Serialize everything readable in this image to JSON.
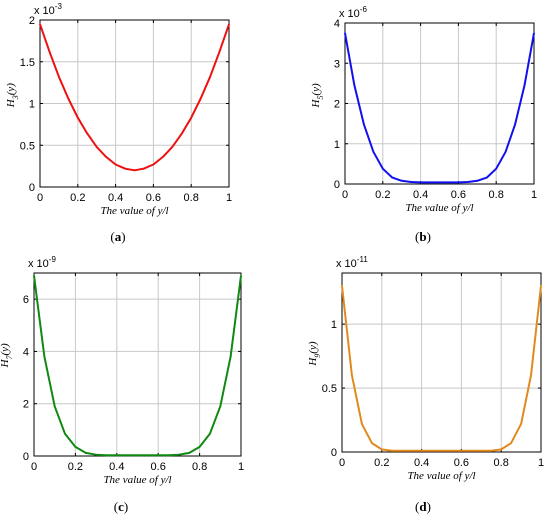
{
  "chart_data": [
    {
      "type": "line",
      "caption": "(a)",
      "exponent_label": "x 10",
      "exponent_power": "-3",
      "ylabel_main": "H",
      "ylabel_sub": "3",
      "ylabel_tail": "(y)",
      "xlabel": "The value of y/l",
      "xlim": [
        0,
        1
      ],
      "ylim": [
        0,
        2
      ],
      "xticks": [
        "0",
        "0.2",
        "0.4",
        "0.6",
        "0.8",
        "1"
      ],
      "yticks": [
        {
          "value": 0,
          "label": "0"
        },
        {
          "value": 0.5,
          "label": "0.5"
        },
        {
          "value": 1,
          "label": "1"
        },
        {
          "value": 1.5,
          "label": "1.5"
        },
        {
          "value": 2,
          "label": "2"
        }
      ],
      "color": "#ee1111",
      "grid": true,
      "x": [
        0,
        0.05,
        0.1,
        0.15,
        0.2,
        0.25,
        0.3,
        0.35,
        0.4,
        0.45,
        0.5,
        0.55,
        0.6,
        0.65,
        0.7,
        0.75,
        0.8,
        0.85,
        0.9,
        0.95,
        1
      ],
      "y": [
        1.95,
        1.62,
        1.32,
        1.06,
        0.83,
        0.64,
        0.48,
        0.36,
        0.27,
        0.22,
        0.2,
        0.22,
        0.27,
        0.36,
        0.48,
        0.64,
        0.83,
        1.06,
        1.32,
        1.62,
        1.95
      ]
    },
    {
      "type": "line",
      "caption": "(b)",
      "exponent_label": "x 10",
      "exponent_power": "-6",
      "ylabel_main": "H",
      "ylabel_sub": "5",
      "ylabel_tail": "(y)",
      "xlabel": "The value of y/l",
      "xlim": [
        0,
        1
      ],
      "ylim": [
        0,
        4
      ],
      "xticks": [
        "0",
        "0.2",
        "0.4",
        "0.6",
        "0.8",
        "1"
      ],
      "yticks": [
        {
          "value": 0,
          "label": "0"
        },
        {
          "value": 1,
          "label": "1"
        },
        {
          "value": 2,
          "label": "2"
        },
        {
          "value": 3,
          "label": "3"
        },
        {
          "value": 4,
          "label": "4"
        }
      ],
      "color": "#1111ee",
      "grid": true,
      "x": [
        0,
        0.05,
        0.1,
        0.15,
        0.2,
        0.25,
        0.3,
        0.35,
        0.4,
        0.45,
        0.5,
        0.55,
        0.6,
        0.65,
        0.7,
        0.75,
        0.8,
        0.85,
        0.9,
        0.95,
        1
      ],
      "y": [
        3.75,
        2.45,
        1.48,
        0.8,
        0.38,
        0.16,
        0.08,
        0.05,
        0.04,
        0.04,
        0.04,
        0.04,
        0.04,
        0.05,
        0.08,
        0.16,
        0.38,
        0.8,
        1.48,
        2.45,
        3.75
      ]
    },
    {
      "type": "line",
      "caption": "(c)",
      "exponent_label": "x 10",
      "exponent_power": "-9",
      "ylabel_main": "H",
      "ylabel_sub": "7",
      "ylabel_tail": "(y)",
      "xlabel": "The value of y/l",
      "xlim": [
        0,
        1
      ],
      "ylim": [
        0,
        7
      ],
      "xticks": [
        "0",
        "0.2",
        "0.4",
        "0.6",
        "0.8",
        "1"
      ],
      "yticks": [
        {
          "value": 0,
          "label": "0"
        },
        {
          "value": 2,
          "label": "2"
        },
        {
          "value": 4,
          "label": "4"
        },
        {
          "value": 6,
          "label": "6"
        }
      ],
      "color": "#118811",
      "grid": true,
      "x": [
        0,
        0.05,
        0.1,
        0.15,
        0.2,
        0.25,
        0.3,
        0.35,
        0.4,
        0.45,
        0.5,
        0.55,
        0.6,
        0.65,
        0.7,
        0.75,
        0.8,
        0.85,
        0.9,
        0.95,
        1
      ],
      "y": [
        6.9,
        3.8,
        1.9,
        0.85,
        0.35,
        0.12,
        0.05,
        0.03,
        0.03,
        0.03,
        0.03,
        0.03,
        0.03,
        0.03,
        0.05,
        0.12,
        0.35,
        0.85,
        1.9,
        3.8,
        6.9
      ]
    },
    {
      "type": "line",
      "caption": "(d)",
      "exponent_label": "x 10",
      "exponent_power": "-11",
      "ylabel_main": "H",
      "ylabel_sub": "9",
      "ylabel_tail": "(y)",
      "xlabel": "The value of y/l",
      "xlim": [
        0,
        1
      ],
      "ylim": [
        0,
        1.4
      ],
      "xticks": [
        "0",
        "0.2",
        "0.4",
        "0.6",
        "0.8",
        "1"
      ],
      "yticks": [
        {
          "value": 0,
          "label": "0"
        },
        {
          "value": 0.5,
          "label": "0.5"
        },
        {
          "value": 1,
          "label": "1"
        }
      ],
      "color": "#e08a1e",
      "grid": true,
      "x": [
        0,
        0.05,
        0.1,
        0.15,
        0.2,
        0.25,
        0.3,
        0.35,
        0.4,
        0.45,
        0.5,
        0.55,
        0.6,
        0.65,
        0.7,
        0.75,
        0.8,
        0.85,
        0.9,
        0.95,
        1
      ],
      "y": [
        1.3,
        0.6,
        0.22,
        0.07,
        0.02,
        0.01,
        0.01,
        0.01,
        0.01,
        0.01,
        0.01,
        0.01,
        0.01,
        0.01,
        0.01,
        0.01,
        0.02,
        0.07,
        0.22,
        0.6,
        1.3
      ]
    }
  ]
}
